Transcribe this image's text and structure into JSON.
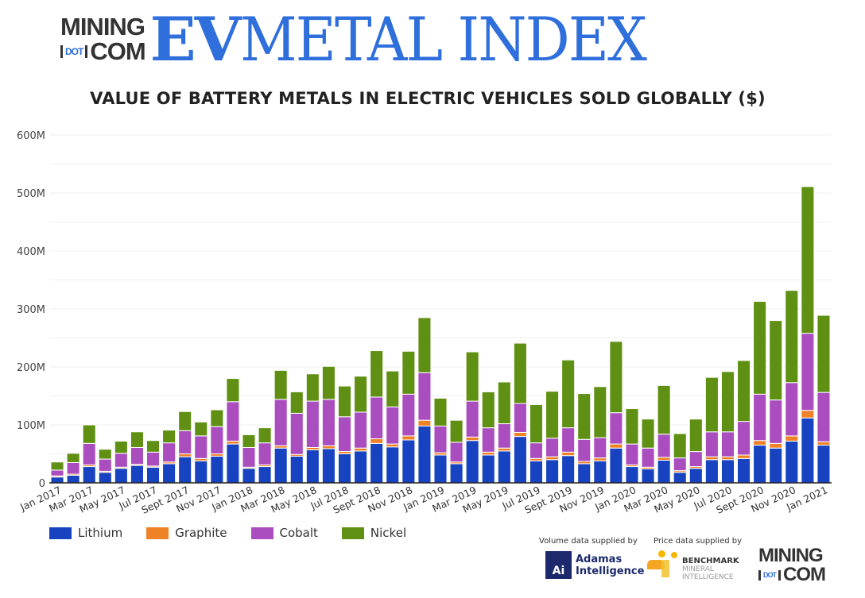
{
  "header": {
    "logo_line1": "MINING",
    "logo_dot": "DOT",
    "logo_line2": "COM",
    "brand_ev": "EV",
    "brand_rest": "METAL INDEX"
  },
  "footer": {
    "volume_credit": "Volume data supplied by",
    "price_credit": "Price data supplied by",
    "adamas_icon": "Ai",
    "adamas_name_1": "Adamas",
    "adamas_name_2": "Intelligence",
    "benchmark_1": "BENCHMARK",
    "benchmark_2": "MINERAL",
    "benchmark_3": "INTELLIGENCE",
    "mining_line1": "MINING",
    "mining_dot": "DOT",
    "mining_line2": "COM"
  },
  "chart_data": {
    "type": "bar",
    "stacked": true,
    "title": "VALUE OF BATTERY METALS IN ELECTRIC VEHICLES SOLD GLOBALLY ($)",
    "xlabel": "",
    "ylabel": "",
    "ylim": [
      0,
      600000000
    ],
    "yticks": [
      0,
      100000000,
      200000000,
      300000000,
      400000000,
      500000000,
      600000000
    ],
    "ytick_labels": [
      "0",
      "100M",
      "200M",
      "300M",
      "400M",
      "500M",
      "600M"
    ],
    "grid": true,
    "legend_position": "bottom-left",
    "categories": [
      "Jan 2017",
      "Feb 2017",
      "Mar 2017",
      "Apr 2017",
      "May 2017",
      "Jun 2017",
      "Jul 2017",
      "Aug 2017",
      "Sept 2017",
      "Oct 2017",
      "Nov 2017",
      "Dec 2017",
      "Jan 2018",
      "Feb 2018",
      "Mar 2018",
      "Apr 2018",
      "May 2018",
      "Jun 2018",
      "Jul 2018",
      "Aug 2018",
      "Sept 2018",
      "Oct 2018",
      "Nov 2018",
      "Dec 2018",
      "Jan 2019",
      "Feb 2019",
      "Mar 2019",
      "Apr 2019",
      "May 2019",
      "Jun 2019",
      "Jul 2019",
      "Aug 2019",
      "Sept 2019",
      "Oct 2019",
      "Nov 2019",
      "Dec 2019",
      "Jan 2020",
      "Feb 2020",
      "Mar 2020",
      "Apr 2020",
      "May 2020",
      "Jun 2020",
      "Jul 2020",
      "Aug 2020",
      "Sept 2020",
      "Oct 2020",
      "Nov 2020",
      "Dec 2020",
      "Jan 2021"
    ],
    "xtick_labels": [
      "Jan 2017",
      "Mar 2017",
      "May 2017",
      "Jul 2017",
      "Sept 2017",
      "Nov 2017",
      "Jan 2018",
      "Mar 2018",
      "May 2018",
      "Jul 2018",
      "Sept 2018",
      "Nov 2018",
      "Jan 2019",
      "Mar 2019",
      "May 2019",
      "Jul 2019",
      "Sept 2019",
      "Nov 2019",
      "Jan 2020",
      "Mar 2020",
      "May 2020",
      "Jul 2020",
      "Sept 2020",
      "Nov 2020",
      "Jan 2021"
    ],
    "series": [
      {
        "name": "Lithium",
        "color": "#1742c0",
        "values": [
          10,
          13,
          28,
          18,
          25,
          30,
          27,
          33,
          45,
          38,
          46,
          67,
          25,
          28,
          60,
          46,
          57,
          59,
          50,
          55,
          68,
          62,
          74,
          98,
          48,
          33,
          73,
          48,
          55,
          80,
          38,
          40,
          47,
          33,
          38,
          60,
          28,
          24,
          39,
          18,
          25,
          40,
          40,
          42,
          65,
          60,
          72,
          112,
          65
        ]
      },
      {
        "name": "Graphite",
        "color": "#ef8127",
        "values": [
          2,
          2,
          3,
          2,
          2,
          2,
          2,
          3,
          5,
          4,
          4,
          5,
          2,
          3,
          4,
          3,
          4,
          5,
          4,
          5,
          8,
          5,
          7,
          10,
          4,
          3,
          6,
          5,
          5,
          7,
          4,
          5,
          6,
          4,
          5,
          7,
          3,
          3,
          5,
          3,
          3,
          5,
          5,
          6,
          8,
          8,
          9,
          13,
          6
        ]
      },
      {
        "name": "Cobalt",
        "color": "#aa4ebf",
        "values": [
          10,
          20,
          37,
          21,
          24,
          29,
          24,
          33,
          40,
          39,
          47,
          68,
          34,
          38,
          80,
          71,
          80,
          80,
          60,
          62,
          72,
          64,
          72,
          82,
          46,
          34,
          62,
          42,
          42,
          50,
          27,
          32,
          42,
          38,
          35,
          54,
          36,
          33,
          40,
          22,
          26,
          43,
          43,
          58,
          80,
          75,
          92,
          133,
          85
        ]
      },
      {
        "name": "Nickel",
        "color": "#5f9014",
        "values": [
          14,
          16,
          32,
          17,
          21,
          27,
          20,
          22,
          33,
          24,
          29,
          40,
          22,
          26,
          50,
          37,
          47,
          57,
          53,
          62,
          80,
          62,
          74,
          95,
          48,
          38,
          85,
          62,
          72,
          104,
          66,
          81,
          117,
          79,
          88,
          123,
          61,
          50,
          84,
          42,
          56,
          94,
          104,
          105,
          160,
          137,
          159,
          253,
          133
        ]
      }
    ]
  }
}
